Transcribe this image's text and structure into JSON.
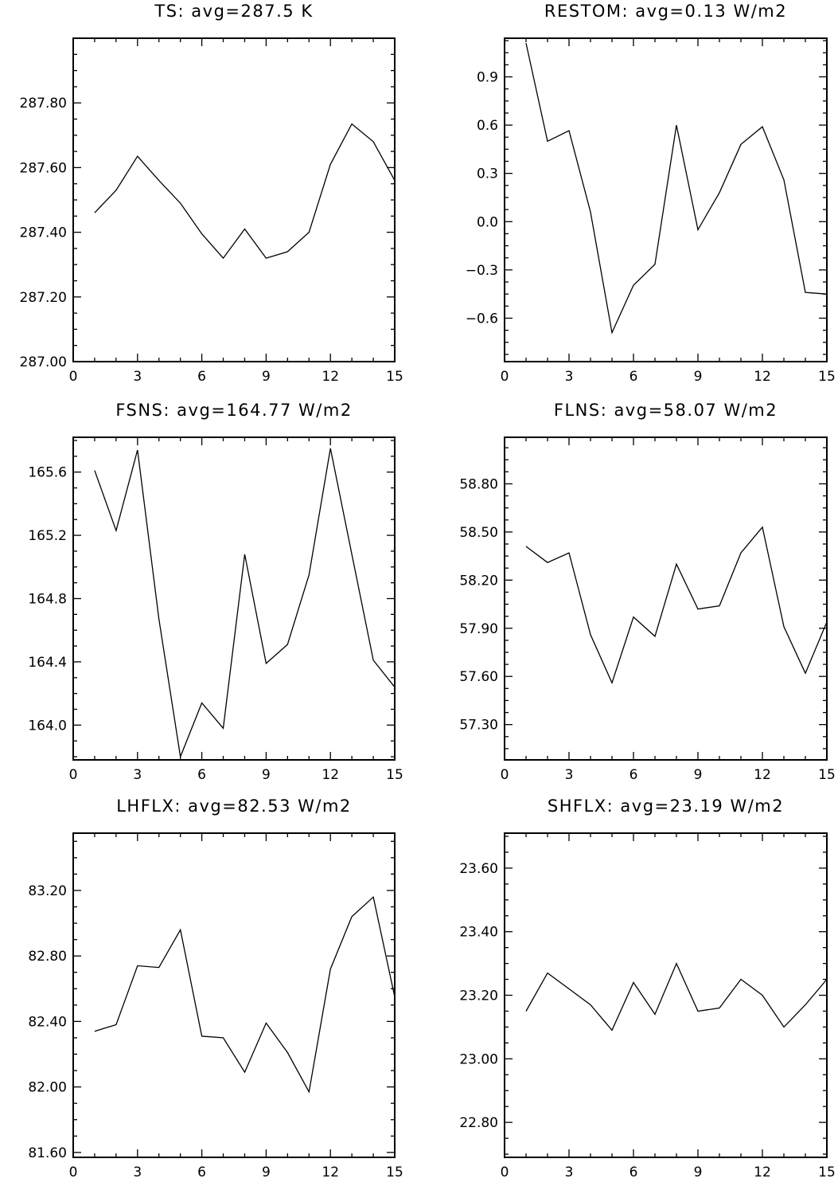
{
  "chart_data": [
    {
      "type": "line",
      "title": "TS: avg=287.5 K",
      "x": [
        1,
        2,
        3,
        4,
        5,
        6,
        7,
        8,
        9,
        10,
        11,
        12,
        13,
        14,
        15
      ],
      "values": [
        287.46,
        287.53,
        287.635,
        287.56,
        287.49,
        287.395,
        287.32,
        287.41,
        287.32,
        287.34,
        287.4,
        287.61,
        287.735,
        287.68,
        287.56
      ],
      "xlim": [
        0,
        15
      ],
      "ylim": [
        287.0,
        288.0
      ],
      "xticks": [
        0,
        3,
        6,
        9,
        12,
        15
      ],
      "xtick_labels": [
        "0",
        "3",
        "6",
        "9",
        "12",
        "15"
      ],
      "yticks": [
        287.0,
        287.2,
        287.4,
        287.6,
        287.8
      ],
      "ytick_labels": [
        "287.00",
        "287.20",
        "287.40",
        "287.60",
        "287.80"
      ],
      "grid": false
    },
    {
      "type": "line",
      "title": "RESTOM: avg=0.13 W/m2",
      "x": [
        1,
        2,
        3,
        4,
        5,
        6,
        7,
        8,
        9,
        10,
        11,
        12,
        13,
        14,
        15
      ],
      "values": [
        1.11,
        0.5,
        0.565,
        0.06,
        -0.69,
        -0.395,
        -0.265,
        0.6,
        -0.05,
        0.18,
        0.48,
        0.59,
        0.26,
        -0.44,
        -0.45
      ],
      "xlim": [
        0,
        15
      ],
      "ylim": [
        -0.87,
        1.14
      ],
      "xticks": [
        0,
        3,
        6,
        9,
        12,
        15
      ],
      "xtick_labels": [
        "0",
        "3",
        "6",
        "9",
        "12",
        "15"
      ],
      "yticks": [
        -0.6,
        -0.3,
        0.0,
        0.3,
        0.6,
        0.9
      ],
      "ytick_labels": [
        "−0.6",
        "−0.3",
        "0.0",
        "0.3",
        "0.6",
        "0.9"
      ],
      "grid": false
    },
    {
      "type": "line",
      "title": "FSNS: avg=164.77 W/m2",
      "x": [
        1,
        2,
        3,
        4,
        5,
        6,
        7,
        8,
        9,
        10,
        11,
        12,
        13,
        14,
        15
      ],
      "values": [
        165.61,
        165.23,
        165.74,
        164.67,
        163.8,
        164.14,
        163.98,
        165.08,
        164.39,
        164.51,
        164.95,
        165.75,
        165.08,
        164.41,
        164.24
      ],
      "xlim": [
        0,
        15
      ],
      "ylim": [
        163.78,
        165.82
      ],
      "xticks": [
        0,
        3,
        6,
        9,
        12,
        15
      ],
      "xtick_labels": [
        "0",
        "3",
        "6",
        "9",
        "12",
        "15"
      ],
      "yticks": [
        164.0,
        164.4,
        164.8,
        165.2,
        165.6
      ],
      "ytick_labels": [
        "164.0",
        "164.4",
        "164.8",
        "165.2",
        "165.6"
      ],
      "grid": false
    },
    {
      "type": "line",
      "title": "FLNS: avg=58.07 W/m2",
      "x": [
        1,
        2,
        3,
        4,
        5,
        6,
        7,
        8,
        9,
        10,
        11,
        12,
        13,
        14,
        15
      ],
      "values": [
        58.41,
        58.31,
        58.37,
        57.86,
        57.56,
        57.97,
        57.85,
        58.3,
        58.02,
        58.04,
        58.37,
        58.53,
        57.91,
        57.62,
        57.94
      ],
      "xlim": [
        0,
        15
      ],
      "ylim": [
        57.08,
        59.09
      ],
      "xticks": [
        0,
        3,
        6,
        9,
        12,
        15
      ],
      "xtick_labels": [
        "0",
        "3",
        "6",
        "9",
        "12",
        "15"
      ],
      "yticks": [
        57.3,
        57.6,
        57.9,
        58.2,
        58.5,
        58.8
      ],
      "ytick_labels": [
        "57.30",
        "57.60",
        "57.90",
        "58.20",
        "58.50",
        "58.80"
      ],
      "grid": false
    },
    {
      "type": "line",
      "title": "LHFLX: avg=82.53 W/m2",
      "x": [
        1,
        2,
        3,
        4,
        5,
        6,
        7,
        8,
        9,
        10,
        11,
        12,
        13,
        14,
        15
      ],
      "values": [
        82.34,
        82.38,
        82.74,
        82.73,
        82.96,
        82.31,
        82.3,
        82.09,
        82.39,
        82.21,
        81.97,
        82.72,
        83.04,
        83.16,
        82.55
      ],
      "xlim": [
        0,
        15
      ],
      "ylim": [
        81.57,
        83.55
      ],
      "xticks": [
        0,
        3,
        6,
        9,
        12,
        15
      ],
      "xtick_labels": [
        "0",
        "3",
        "6",
        "9",
        "12",
        "15"
      ],
      "yticks": [
        81.6,
        82.0,
        82.4,
        82.8,
        83.2
      ],
      "ytick_labels": [
        "81.60",
        "82.00",
        "82.40",
        "82.80",
        "83.20"
      ],
      "grid": false
    },
    {
      "type": "line",
      "title": "SHFLX: avg=23.19 W/m2",
      "x": [
        1,
        2,
        3,
        4,
        5,
        6,
        7,
        8,
        9,
        10,
        11,
        12,
        13,
        14,
        15
      ],
      "values": [
        23.15,
        23.27,
        23.22,
        23.17,
        23.09,
        23.24,
        23.14,
        23.3,
        23.15,
        23.16,
        23.25,
        23.2,
        23.1,
        23.17,
        23.25
      ],
      "xlim": [
        0,
        15
      ],
      "ylim": [
        22.69,
        23.71
      ],
      "xticks": [
        0,
        3,
        6,
        9,
        12,
        15
      ],
      "xtick_labels": [
        "0",
        "3",
        "6",
        "9",
        "12",
        "15"
      ],
      "yticks": [
        22.8,
        23.0,
        23.2,
        23.4,
        23.6
      ],
      "ytick_labels": [
        "22.80",
        "23.00",
        "23.20",
        "23.40",
        "23.60"
      ],
      "grid": false
    }
  ]
}
